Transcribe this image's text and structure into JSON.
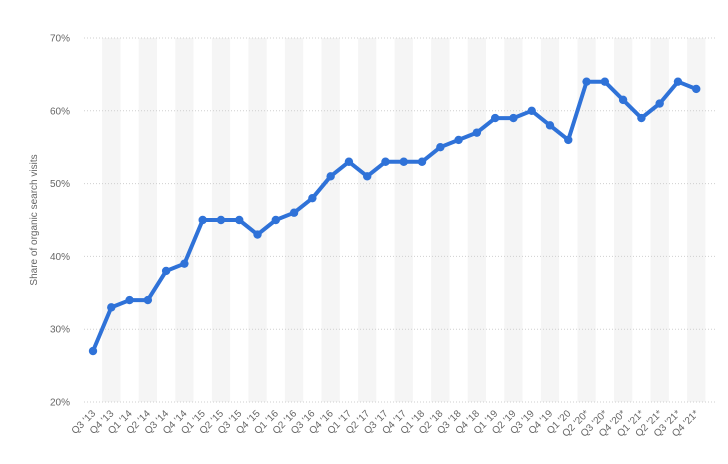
{
  "chart_data": {
    "type": "line",
    "ylabel": "Share of organic search visits",
    "xlabel": "",
    "ylim": [
      20,
      70
    ],
    "yticks": [
      20,
      30,
      40,
      50,
      60,
      70
    ],
    "ytick_labels": [
      "20%",
      "30%",
      "40%",
      "50%",
      "60%",
      "70%"
    ],
    "categories": [
      "Q3 '13",
      "Q4 '13",
      "Q1 '14",
      "Q2 '14",
      "Q3 '14",
      "Q4 '14",
      "Q1 '15",
      "Q2 '15",
      "Q3 '15",
      "Q4 '15",
      "Q1 '16",
      "Q2 '16",
      "Q3 '16",
      "Q4 '16",
      "Q1 '17",
      "Q2 '17",
      "Q3 '17",
      "Q4 '17",
      "Q1 '18",
      "Q2 '18",
      "Q3 '18",
      "Q4 '18",
      "Q1 '19",
      "Q2 '19",
      "Q3 '19",
      "Q4 '19",
      "Q1 '20",
      "Q2 '20*",
      "Q3 '20*",
      "Q4 '20*",
      "Q1 '21*",
      "Q2 '21*",
      "Q3 '21*",
      "Q4 '21*"
    ],
    "values": [
      27,
      33,
      34,
      34,
      38,
      39,
      45,
      45,
      45,
      43,
      45,
      46,
      48,
      51,
      53,
      51,
      53,
      53,
      53,
      55,
      56,
      57,
      59,
      59,
      60,
      58,
      56,
      64,
      64,
      61.5,
      59,
      61,
      64,
      63
    ],
    "grid": "horizontal dotted, alternating light column bands",
    "line_color": "#2f72d8",
    "band_color": "#f5f5f5",
    "grid_color": "#cfcfcf"
  }
}
